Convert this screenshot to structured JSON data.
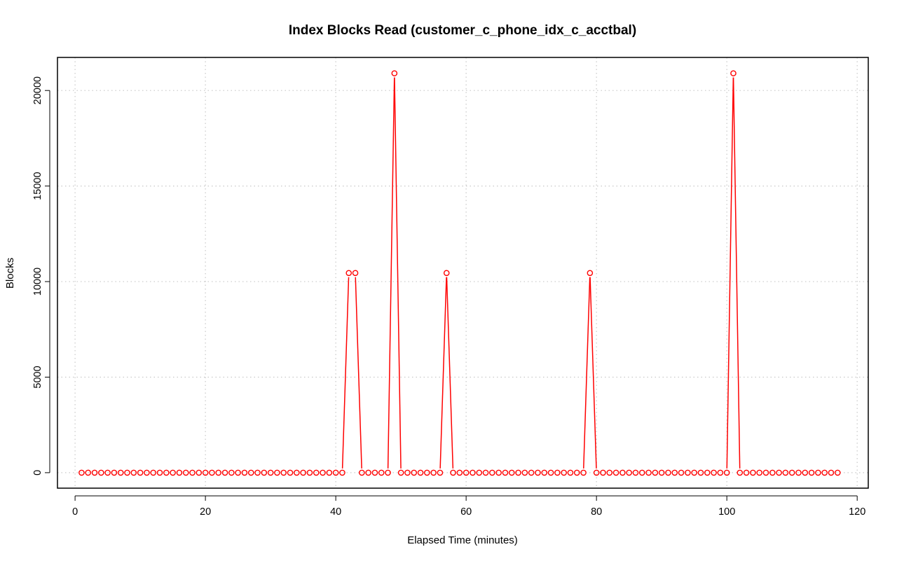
{
  "chart_data": {
    "type": "line",
    "title": "Index Blocks Read (customer_c_phone_idx_c_acctbal)",
    "xlabel": "Elapsed Time (minutes)",
    "ylabel": "Blocks",
    "xlim": [
      -2.7,
      121.7
    ],
    "ylim": [
      -810,
      21730
    ],
    "x_ticks": [
      0,
      20,
      40,
      60,
      80,
      100,
      120
    ],
    "y_ticks": [
      0,
      5000,
      10000,
      15000,
      20000
    ],
    "grid": true,
    "line_color": "#ff0000",
    "marker": "open-circle",
    "series": [
      {
        "x": [
          1,
          2,
          3,
          4,
          5,
          6,
          7,
          8,
          9,
          10,
          11,
          12,
          13,
          14,
          15,
          16,
          17,
          18,
          19,
          20,
          21,
          22,
          23,
          24,
          25,
          26,
          27,
          28,
          29,
          30,
          31,
          32,
          33,
          34,
          35,
          36,
          37,
          38,
          39,
          40,
          41,
          42,
          43,
          44,
          45,
          46,
          47,
          48,
          49,
          50,
          51,
          52,
          53,
          54,
          55,
          56,
          57,
          58,
          59,
          60,
          61,
          62,
          63,
          64,
          65,
          66,
          67,
          68,
          69,
          70,
          71,
          72,
          73,
          74,
          75,
          76,
          77,
          78,
          79,
          80,
          81,
          82,
          83,
          84,
          85,
          86,
          87,
          88,
          89,
          90,
          91,
          92,
          93,
          94,
          95,
          96,
          97,
          98,
          99,
          100,
          101,
          102,
          103,
          104,
          105,
          106,
          107,
          108,
          109,
          110,
          111,
          112,
          113,
          114,
          115,
          116,
          117
        ],
        "values": [
          0,
          0,
          0,
          0,
          0,
          0,
          0,
          0,
          0,
          0,
          0,
          0,
          0,
          0,
          0,
          0,
          0,
          0,
          0,
          0,
          0,
          0,
          0,
          0,
          0,
          0,
          0,
          0,
          0,
          0,
          0,
          0,
          0,
          0,
          0,
          0,
          0,
          0,
          0,
          0,
          0,
          10450,
          10450,
          0,
          0,
          0,
          0,
          0,
          20900,
          0,
          0,
          0,
          0,
          0,
          0,
          0,
          10450,
          0,
          0,
          0,
          0,
          0,
          0,
          0,
          0,
          0,
          0,
          0,
          0,
          0,
          0,
          0,
          0,
          0,
          0,
          0,
          0,
          0,
          10450,
          0,
          0,
          0,
          0,
          0,
          0,
          0,
          0,
          0,
          0,
          0,
          0,
          0,
          0,
          0,
          0,
          0,
          0,
          0,
          0,
          0,
          20900,
          0,
          0,
          0,
          0,
          0,
          0,
          0,
          0,
          0,
          0,
          0,
          0,
          0,
          0,
          0,
          0
        ]
      }
    ]
  }
}
